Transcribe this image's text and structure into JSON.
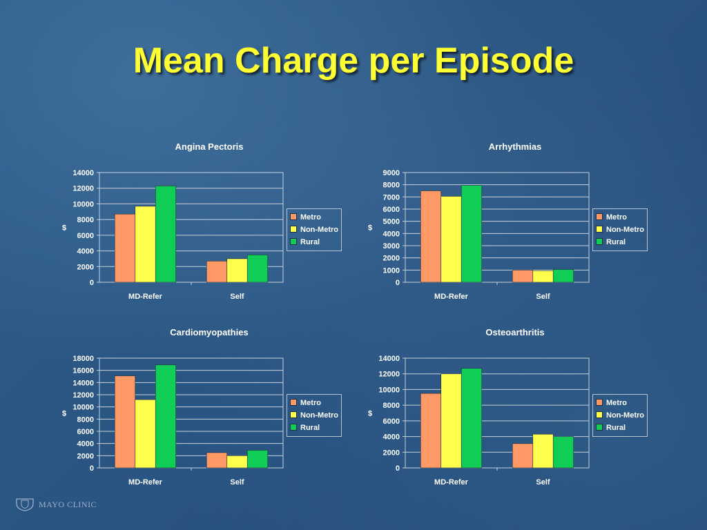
{
  "slide": {
    "title": "Mean Charge per Episode",
    "logo_text": "MAYO CLINIC"
  },
  "colors": {
    "Metro": "#ff9966",
    "Non-Metro": "#ffff4d",
    "Rural": "#11cc55"
  },
  "chart_data": [
    {
      "type": "bar",
      "title": "Angina Pectoris",
      "categories": [
        "MD-Refer",
        "Self"
      ],
      "series": [
        {
          "name": "Metro",
          "values": [
            8700,
            2700
          ]
        },
        {
          "name": "Non-Metro",
          "values": [
            9700,
            3000
          ]
        },
        {
          "name": "Rural",
          "values": [
            12300,
            3500
          ]
        }
      ],
      "ylabel": "$",
      "ylim": [
        0,
        14000
      ],
      "yticks": [
        "0",
        "2000",
        "4000",
        "6000",
        "8000",
        "10000",
        "12000",
        "14000"
      ],
      "grid": true,
      "legend": "right"
    },
    {
      "type": "bar",
      "title": "Arrhythmias",
      "categories": [
        "MD-Refer",
        "Self"
      ],
      "series": [
        {
          "name": "Metro",
          "values": [
            7500,
            1000
          ]
        },
        {
          "name": "Non-Metro",
          "values": [
            7050,
            950
          ]
        },
        {
          "name": "Rural",
          "values": [
            7950,
            1050
          ]
        }
      ],
      "ylabel": "$",
      "ylim": [
        0,
        9000
      ],
      "yticks": [
        "0",
        "1000",
        "2000",
        "3000",
        "4000",
        "5000",
        "6000",
        "7000",
        "8000",
        "9000"
      ],
      "grid": true,
      "legend": "right"
    },
    {
      "type": "bar",
      "title": "Cardiomyopathies",
      "categories": [
        "MD-Refer",
        "Self"
      ],
      "series": [
        {
          "name": "Metro",
          "values": [
            15100,
            2500
          ]
        },
        {
          "name": "Non-Metro",
          "values": [
            11200,
            2000
          ]
        },
        {
          "name": "Rural",
          "values": [
            16900,
            2900
          ]
        }
      ],
      "ylabel": "$",
      "ylim": [
        0,
        18000
      ],
      "yticks": [
        "0",
        "2000",
        "4000",
        "6000",
        "8000",
        "10000",
        "12000",
        "14000",
        "16000",
        "18000"
      ],
      "grid": true,
      "legend": "right"
    },
    {
      "type": "bar",
      "title": "Osteoarthritis",
      "categories": [
        "MD-Refer",
        "Self"
      ],
      "series": [
        {
          "name": "Metro",
          "values": [
            9500,
            3100
          ]
        },
        {
          "name": "Non-Metro",
          "values": [
            12000,
            4300
          ]
        },
        {
          "name": "Rural",
          "values": [
            12700,
            4000
          ]
        }
      ],
      "ylabel": "$",
      "ylim": [
        0,
        14000
      ],
      "yticks": [
        "0",
        "2000",
        "4000",
        "6000",
        "8000",
        "10000",
        "12000",
        "14000"
      ],
      "grid": true,
      "legend": "right"
    }
  ]
}
